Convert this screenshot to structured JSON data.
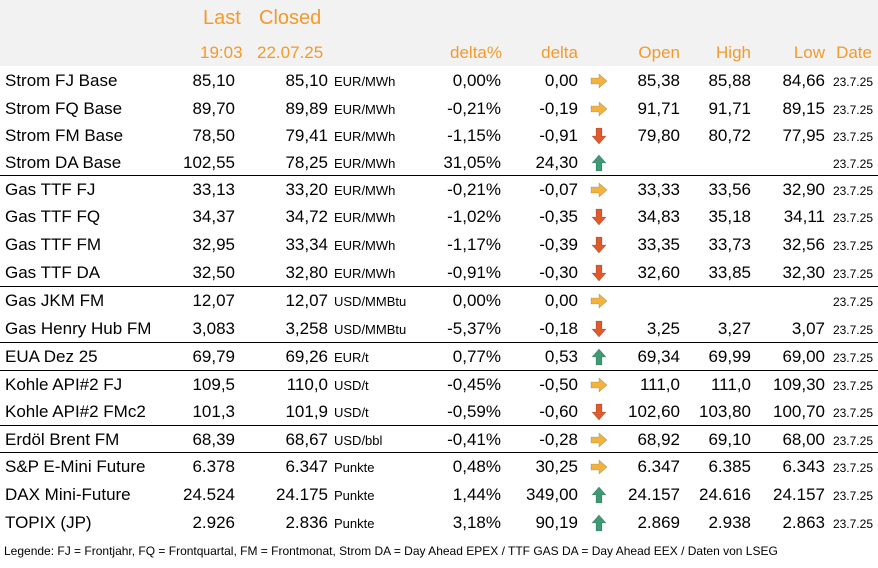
{
  "header": {
    "last": "Last",
    "closed": "Closed",
    "last_time": "19:03",
    "closed_date": "22.07.25",
    "delta_pct": "delta%",
    "delta": "delta",
    "open": "Open",
    "high": "High",
    "low": "Low",
    "date": "Date"
  },
  "rows": [
    {
      "name": "Strom FJ Base",
      "last": "85,10",
      "closed": "85,10",
      "unit": "EUR/MWh",
      "delta_pct": "0,00%",
      "delta": "0,00",
      "trend": "right-arrow-icon",
      "open": "85,38",
      "high": "85,88",
      "low": "84,66",
      "date": "23.7.25"
    },
    {
      "name": "Strom FQ Base",
      "last": "89,70",
      "closed": "89,89",
      "unit": "EUR/MWh",
      "delta_pct": "-0,21%",
      "delta": "-0,19",
      "trend": "right-arrow-icon",
      "open": "91,71",
      "high": "91,71",
      "low": "89,15",
      "date": "23.7.25"
    },
    {
      "name": "Strom FM Base",
      "last": "78,50",
      "closed": "79,41",
      "unit": "EUR/MWh",
      "delta_pct": "-1,15%",
      "delta": "-0,91",
      "trend": "down-arrow-icon",
      "open": "79,80",
      "high": "80,72",
      "low": "77,95",
      "date": "23.7.25"
    },
    {
      "name": "Strom DA Base",
      "last": "102,55",
      "closed": "78,25",
      "unit": "EUR/MWh",
      "delta_pct": "31,05%",
      "delta": "24,30",
      "trend": "up-arrow-icon",
      "open": "",
      "high": "",
      "low": "",
      "date": "23.7.25"
    },
    {
      "name": "Gas TTF FJ",
      "last": "33,13",
      "closed": "33,20",
      "unit": "EUR/MWh",
      "delta_pct": "-0,21%",
      "delta": "-0,07",
      "trend": "right-arrow-icon",
      "open": "33,33",
      "high": "33,56",
      "low": "32,90",
      "date": "23.7.25"
    },
    {
      "name": "Gas TTF FQ",
      "last": "34,37",
      "closed": "34,72",
      "unit": "EUR/MWh",
      "delta_pct": "-1,02%",
      "delta": "-0,35",
      "trend": "down-arrow-icon",
      "open": "34,83",
      "high": "35,18",
      "low": "34,11",
      "date": "23.7.25"
    },
    {
      "name": "Gas TTF FM",
      "last": "32,95",
      "closed": "33,34",
      "unit": "EUR/MWh",
      "delta_pct": "-1,17%",
      "delta": "-0,39",
      "trend": "down-arrow-icon",
      "open": "33,35",
      "high": "33,73",
      "low": "32,56",
      "date": "23.7.25"
    },
    {
      "name": "Gas TTF DA",
      "last": "32,50",
      "closed": "32,80",
      "unit": "EUR/MWh",
      "delta_pct": "-0,91%",
      "delta": "-0,30",
      "trend": "down-arrow-icon",
      "open": "32,60",
      "high": "33,85",
      "low": "32,30",
      "date": "23.7.25"
    },
    {
      "name": "Gas JKM FM",
      "last": "12,07",
      "closed": "12,07",
      "unit": "USD/MMBtu",
      "delta_pct": "0,00%",
      "delta": "0,00",
      "trend": "right-arrow-icon",
      "open": "",
      "high": "",
      "low": "",
      "date": "23.7.25"
    },
    {
      "name": "Gas Henry Hub FM",
      "last": "3,083",
      "closed": "3,258",
      "unit": "USD/MMBtu",
      "delta_pct": "-5,37%",
      "delta": "-0,18",
      "trend": "down-arrow-icon",
      "open": "3,25",
      "high": "3,27",
      "low": "3,07",
      "date": "23.7.25"
    },
    {
      "name": "EUA Dez 25",
      "last": "69,79",
      "closed": "69,26",
      "unit": "EUR/t",
      "delta_pct": "0,77%",
      "delta": "0,53",
      "trend": "up-arrow-icon",
      "open": "69,34",
      "high": "69,99",
      "low": "69,00",
      "date": "23.7.25"
    },
    {
      "name": "Kohle API#2 FJ",
      "last": "109,5",
      "closed": "110,0",
      "unit": "USD/t",
      "delta_pct": "-0,45%",
      "delta": "-0,50",
      "trend": "right-arrow-icon",
      "open": "111,0",
      "high": "111,0",
      "low": "109,30",
      "date": "23.7.25"
    },
    {
      "name": "Kohle API#2 FMc2",
      "last": "101,3",
      "closed": "101,9",
      "unit": "USD/t",
      "delta_pct": "-0,59%",
      "delta": "-0,60",
      "trend": "down-arrow-icon",
      "open": "102,60",
      "high": "103,80",
      "low": "100,70",
      "date": "23.7.25"
    },
    {
      "name": "Erdöl Brent FM",
      "last": "68,39",
      "closed": "68,67",
      "unit": "USD/bbl",
      "delta_pct": "-0,41%",
      "delta": "-0,28",
      "trend": "right-arrow-icon",
      "open": "68,92",
      "high": "69,10",
      "low": "68,00",
      "date": "23.7.25"
    },
    {
      "name": "S&P E-Mini Future",
      "last": "6.378",
      "closed": "6.347",
      "unit": "Punkte",
      "delta_pct": "0,48%",
      "delta": "30,25",
      "trend": "right-arrow-icon",
      "open": "6.347",
      "high": "6.385",
      "low": "6.343",
      "date": "23.7.25"
    },
    {
      "name": "DAX Mini-Future",
      "last": "24.524",
      "closed": "24.175",
      "unit": "Punkte",
      "delta_pct": "1,44%",
      "delta": "349,00",
      "trend": "up-arrow-icon",
      "open": "24.157",
      "high": "24.616",
      "low": "24.157",
      "date": "23.7.25"
    },
    {
      "name": "TOPIX (JP)",
      "last": "2.926",
      "closed": "2.836",
      "unit": "Punkte",
      "delta_pct": "3,18%",
      "delta": "90,19",
      "trend": "up-arrow-icon",
      "open": "2.869",
      "high": "2.938",
      "low": "2.863",
      "date": "23.7.25"
    }
  ],
  "legend": "Legende: FJ = Frontjahr, FQ = Frontquartal, FM = Frontmonat, Strom DA = Day Ahead EPEX / TTF GAS DA = Day Ahead EEX / Daten von LSEG",
  "colors": {
    "header_text": "#f39a2b",
    "header_bg": "#f2f2f2",
    "arrow_right": "#f2b33d",
    "arrow_down": "#e05a2b",
    "arrow_up": "#3e9a74"
  }
}
